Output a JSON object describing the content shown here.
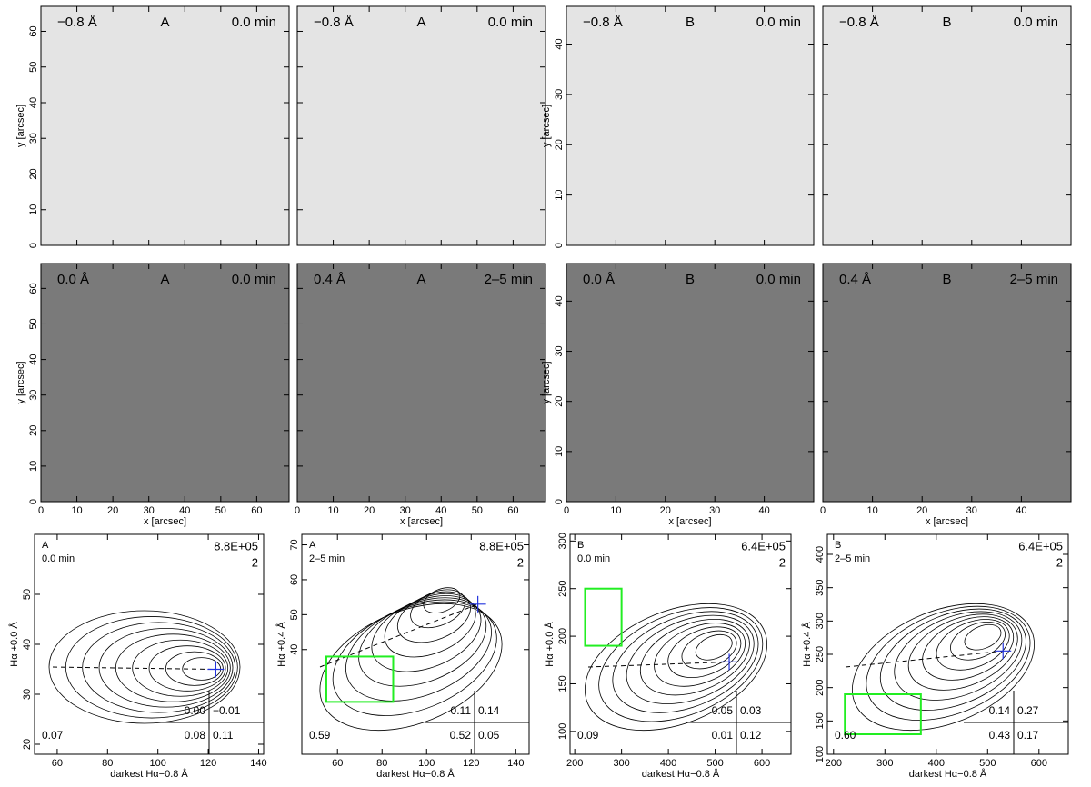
{
  "chart_data": [
    {
      "type": "image",
      "labels": [
        "−0.8 Å",
        "A",
        "0.0 min"
      ],
      "label_color": "#1a1acc",
      "xlim": [
        0,
        69
      ],
      "xticks": [
        0,
        10,
        20,
        30,
        40,
        50,
        60
      ],
      "ylim": [
        0,
        67
      ],
      "yticks": [
        0,
        10,
        20,
        30,
        40,
        50,
        60
      ],
      "ylabel": "y [arcsec]"
    },
    {
      "type": "image",
      "labels": [
        "−0.8 Å",
        "A",
        "0.0 min"
      ],
      "label_color": "#1a1acc",
      "xlim": [
        0,
        69
      ],
      "xticks": [
        0,
        10,
        20,
        30,
        40,
        50,
        60
      ],
      "ylim": [
        0,
        67
      ],
      "yticks": [
        0,
        10,
        20,
        30,
        40,
        50,
        60
      ]
    },
    {
      "type": "image",
      "labels": [
        "−0.8 Å",
        "B",
        "0.0 min"
      ],
      "label_color": "#1a1acc",
      "xlim": [
        0,
        50
      ],
      "xticks": [
        0,
        10,
        20,
        30,
        40
      ],
      "ylim": [
        0,
        47.5
      ],
      "yticks": [
        0,
        10,
        20,
        30,
        40
      ],
      "ylabel": "y [arcsec]"
    },
    {
      "type": "image",
      "labels": [
        "−0.8 Å",
        "B",
        "0.0 min"
      ],
      "label_color": "#1a1acc",
      "xlim": [
        0,
        50
      ],
      "xticks": [
        0,
        10,
        20,
        30,
        40
      ],
      "ylim": [
        0,
        47.5
      ],
      "yticks": [
        0,
        10,
        20,
        30,
        40
      ]
    },
    {
      "type": "image",
      "labels": [
        "0.0 Å",
        "A",
        "0.0 min"
      ],
      "label_color": "#e6c21a",
      "xlim": [
        0,
        69
      ],
      "xticks": [
        0,
        10,
        20,
        30,
        40,
        50,
        60
      ],
      "ylim": [
        0,
        67
      ],
      "yticks": [
        0,
        10,
        20,
        30,
        40,
        50,
        60
      ],
      "ylabel": "y [arcsec]",
      "xlabel": "x [arcsec]"
    },
    {
      "type": "image",
      "labels": [
        "0.4 Å",
        "A",
        "2–5 min"
      ],
      "label_color": "#e6c21a",
      "xlim": [
        0,
        69
      ],
      "xticks": [
        0,
        10,
        20,
        30,
        40,
        50,
        60
      ],
      "ylim": [
        0,
        67
      ],
      "yticks": [
        0,
        10,
        20,
        30,
        40,
        50,
        60
      ],
      "xlabel": "x [arcsec]"
    },
    {
      "type": "image",
      "labels": [
        "0.0 Å",
        "B",
        "0.0 min"
      ],
      "label_color": "#e6c21a",
      "xlim": [
        0,
        50
      ],
      "xticks": [
        0,
        10,
        20,
        30,
        40
      ],
      "ylim": [
        0,
        47.5
      ],
      "yticks": [
        0,
        10,
        20,
        30,
        40
      ],
      "ylabel": "y [arcsec]",
      "xlabel": "x [arcsec]"
    },
    {
      "type": "image",
      "labels": [
        "0.4 Å",
        "B",
        "2–5 min"
      ],
      "label_color": "#e6c21a",
      "xlim": [
        0,
        50
      ],
      "xticks": [
        0,
        10,
        20,
        30,
        40
      ],
      "ylim": [
        0,
        47.5
      ],
      "yticks": [
        0,
        10,
        20,
        30,
        40
      ],
      "xlabel": "x [arcsec]"
    },
    {
      "type": "contour",
      "region": "A",
      "time": "0.0 min",
      "peak": "8.8E+05",
      "level": "2",
      "corners": [
        "0.00",
        "−0.01",
        "0.07",
        "0.08",
        "0.11"
      ],
      "xlabel": "darkest Hα−0.8 Å",
      "ylabel": "Hα +0.0 Å",
      "xlim": [
        51,
        142
      ],
      "xticks": [
        60,
        80,
        100,
        120,
        140
      ],
      "ylim": [
        18,
        62
      ],
      "yticks": [
        20,
        30,
        40,
        50
      ],
      "marker": {
        "x": 123,
        "y": 35
      },
      "marker_color": "#2233dd"
    },
    {
      "type": "contour",
      "region": "A",
      "time": "2–5 min",
      "peak": "8.8E+05",
      "level": "2",
      "corners": [
        "0.11",
        "0.14",
        "0.59",
        "0.52",
        "0.05"
      ],
      "xlabel": "darkest Hα−0.8 Å",
      "ylabel": "Hα +0.4 Å",
      "xlim": [
        44,
        146
      ],
      "xticks": [
        60,
        80,
        100,
        120,
        140
      ],
      "ylim": [
        10,
        73
      ],
      "yticks": [
        40,
        50,
        60,
        70
      ],
      "marker": {
        "x": 123,
        "y": 53
      },
      "marker_color": "#2233dd",
      "box": {
        "x": [
          55,
          85
        ],
        "y": [
          25,
          38
        ]
      },
      "box_color": "#22ee22"
    },
    {
      "type": "contour",
      "region": "B",
      "time": "0.0 min",
      "peak": "6.4E+05",
      "level": "2",
      "corners": [
        "0.05",
        "0.03",
        "0.09",
        "0.01",
        "0.12"
      ],
      "xlabel": "darkest Hα−0.8 Å",
      "ylabel": "Hα +0.0 Å",
      "xlim": [
        190,
        662
      ],
      "xticks": [
        200,
        300,
        400,
        500,
        600
      ],
      "ylim": [
        76,
        307
      ],
      "yticks": [
        100,
        150,
        200,
        250,
        300
      ],
      "marker": {
        "x": 530,
        "y": 173
      },
      "marker_color": "#2233dd",
      "box": {
        "x": [
          222,
          300
        ],
        "y": [
          190,
          250
        ]
      },
      "box_color": "#22ee22"
    },
    {
      "type": "contour",
      "region": "B",
      "time": "2–5 min",
      "peak": "6.4E+05",
      "level": "2",
      "corners": [
        "0.14",
        "0.27",
        "0.60",
        "0.43",
        "0.17"
      ],
      "xlabel": "darkest Hα−0.8 Å",
      "ylabel": "Hα +0.4 Å",
      "xlim": [
        188,
        657
      ],
      "xticks": [
        200,
        300,
        400,
        500,
        600
      ],
      "ylim": [
        100,
        430
      ],
      "yticks": [
        100,
        150,
        200,
        250,
        300,
        350,
        400
      ],
      "marker": {
        "x": 530,
        "y": 255
      },
      "marker_color": "#2233dd",
      "box": {
        "x": [
          222,
          370
        ],
        "y": [
          130,
          190
        ]
      },
      "box_color": "#22ee22"
    }
  ]
}
